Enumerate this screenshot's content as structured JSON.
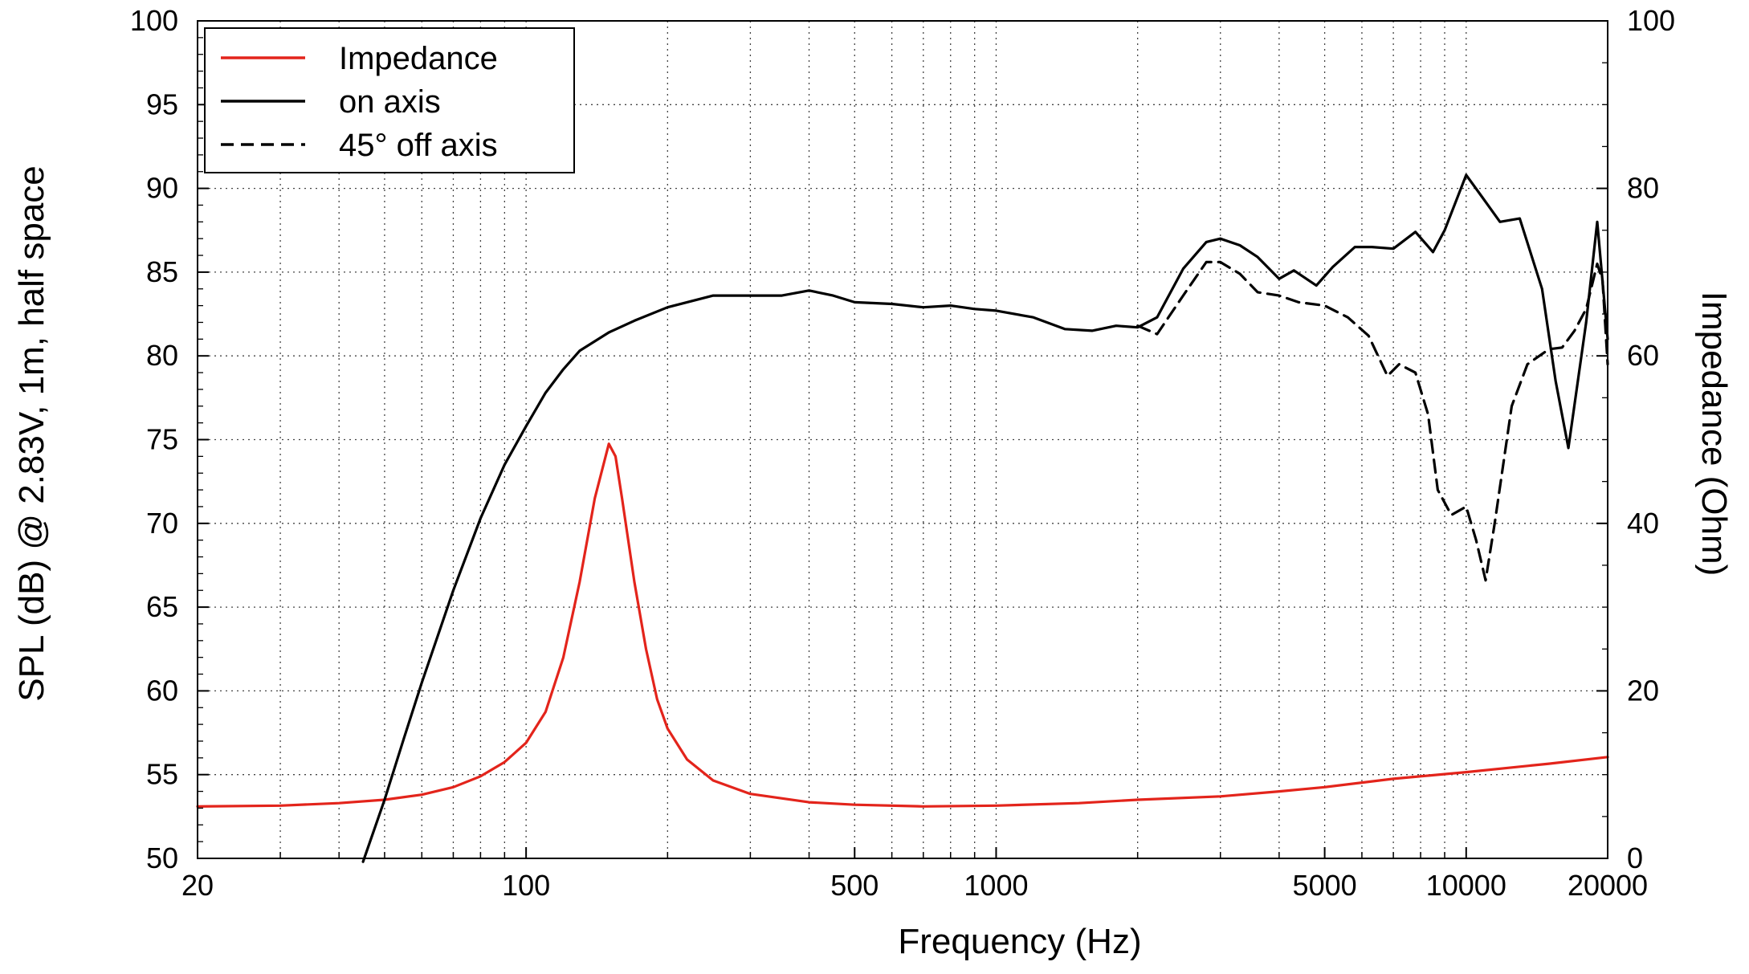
{
  "chart_data": {
    "type": "line",
    "xlabel": "Frequency (Hz)",
    "ylabel": "SPL (dB) @ 2.83V, 1m, half space",
    "y2label": "Impedance (Ohm)",
    "xscale": "log",
    "xlim": [
      20,
      20000
    ],
    "ylim": [
      50,
      100
    ],
    "y2lim": [
      0,
      100
    ],
    "grid": true,
    "legend_position": "top-left",
    "xticks": [
      20,
      100,
      500,
      1000,
      5000,
      10000,
      20000
    ],
    "xtick_labels": [
      "20",
      "100",
      "500",
      "1000",
      "5000",
      "10000",
      "20000"
    ],
    "yticks": [
      50,
      55,
      60,
      65,
      70,
      75,
      80,
      85,
      90,
      95,
      100
    ],
    "ytick_labels": [
      "50",
      "55",
      "60",
      "65",
      "70",
      "75",
      "80",
      "85",
      "90",
      "95",
      "100"
    ],
    "y2ticks": [
      0,
      20,
      40,
      60,
      80,
      100
    ],
    "y2tick_labels": [
      "0",
      "20",
      "40",
      "60",
      "80",
      "100"
    ],
    "series": [
      {
        "name": "Impedance",
        "axis": "right",
        "color": "#e3241b",
        "dash": "solid",
        "points": [
          [
            20,
            6.2
          ],
          [
            30,
            6.3
          ],
          [
            40,
            6.6
          ],
          [
            50,
            7
          ],
          [
            60,
            7.6
          ],
          [
            70,
            8.5
          ],
          [
            80,
            9.8
          ],
          [
            90,
            11.5
          ],
          [
            100,
            13.8
          ],
          [
            110,
            17.5
          ],
          [
            120,
            24
          ],
          [
            130,
            33
          ],
          [
            140,
            43
          ],
          [
            150,
            49.5
          ],
          [
            155,
            48
          ],
          [
            160,
            43
          ],
          [
            170,
            33
          ],
          [
            180,
            25
          ],
          [
            190,
            19
          ],
          [
            200,
            15.5
          ],
          [
            220,
            11.8
          ],
          [
            250,
            9.3
          ],
          [
            300,
            7.7
          ],
          [
            400,
            6.7
          ],
          [
            500,
            6.4
          ],
          [
            700,
            6.2
          ],
          [
            1000,
            6.3
          ],
          [
            1500,
            6.6
          ],
          [
            2000,
            7
          ],
          [
            3000,
            7.4
          ],
          [
            4000,
            8
          ],
          [
            5000,
            8.5
          ],
          [
            7000,
            9.5
          ],
          [
            10000,
            10.3
          ],
          [
            15000,
            11.3
          ],
          [
            20000,
            12.1
          ]
        ]
      },
      {
        "name": "on axis",
        "axis": "left",
        "color": "#000000",
        "dash": "solid",
        "points": [
          [
            45,
            49.8
          ],
          [
            50,
            53.5
          ],
          [
            55,
            57.2
          ],
          [
            60,
            60.5
          ],
          [
            70,
            66
          ],
          [
            80,
            70.3
          ],
          [
            90,
            73.5
          ],
          [
            100,
            75.8
          ],
          [
            110,
            77.8
          ],
          [
            120,
            79.2
          ],
          [
            130,
            80.3
          ],
          [
            150,
            81.4
          ],
          [
            170,
            82.1
          ],
          [
            200,
            82.9
          ],
          [
            250,
            83.6
          ],
          [
            300,
            83.6
          ],
          [
            350,
            83.6
          ],
          [
            400,
            83.9
          ],
          [
            450,
            83.6
          ],
          [
            500,
            83.2
          ],
          [
            600,
            83.1
          ],
          [
            700,
            82.9
          ],
          [
            800,
            83
          ],
          [
            900,
            82.8
          ],
          [
            1000,
            82.7
          ],
          [
            1200,
            82.3
          ],
          [
            1400,
            81.6
          ],
          [
            1600,
            81.5
          ],
          [
            1800,
            81.8
          ],
          [
            2000,
            81.7
          ],
          [
            2200,
            82.3
          ],
          [
            2500,
            85.2
          ],
          [
            2800,
            86.8
          ],
          [
            3000,
            87
          ],
          [
            3300,
            86.6
          ],
          [
            3600,
            85.9
          ],
          [
            4000,
            84.6
          ],
          [
            4300,
            85.1
          ],
          [
            4800,
            84.2
          ],
          [
            5200,
            85.3
          ],
          [
            5800,
            86.5
          ],
          [
            6300,
            86.5
          ],
          [
            7000,
            86.4
          ],
          [
            7800,
            87.4
          ],
          [
            8500,
            86.2
          ],
          [
            9000,
            87.5
          ],
          [
            10000,
            90.8
          ],
          [
            10800,
            89.5
          ],
          [
            11800,
            88
          ],
          [
            13000,
            88.2
          ],
          [
            14500,
            84
          ],
          [
            15500,
            78.5
          ],
          [
            16500,
            74.5
          ],
          [
            18000,
            82
          ],
          [
            19000,
            88
          ],
          [
            20000,
            81
          ]
        ]
      },
      {
        "name": "45° off axis",
        "axis": "left",
        "color": "#000000",
        "dash": "dashed",
        "points": [
          [
            2000,
            81.8
          ],
          [
            2200,
            81.3
          ],
          [
            2500,
            83.6
          ],
          [
            2800,
            85.6
          ],
          [
            3000,
            85.6
          ],
          [
            3300,
            84.9
          ],
          [
            3600,
            83.8
          ],
          [
            4000,
            83.6
          ],
          [
            4400,
            83.2
          ],
          [
            5000,
            83
          ],
          [
            5600,
            82.3
          ],
          [
            6200,
            81.2
          ],
          [
            6800,
            78.8
          ],
          [
            7200,
            79.5
          ],
          [
            7800,
            79
          ],
          [
            8300,
            76.5
          ],
          [
            8700,
            72
          ],
          [
            9300,
            70.5
          ],
          [
            10000,
            71
          ],
          [
            10500,
            69
          ],
          [
            11000,
            66.6
          ],
          [
            11500,
            70
          ],
          [
            12500,
            77
          ],
          [
            13500,
            79.5
          ],
          [
            15000,
            80.4
          ],
          [
            16000,
            80.5
          ],
          [
            17000,
            81.5
          ],
          [
            18000,
            82.8
          ],
          [
            19000,
            85.5
          ],
          [
            19500,
            84.5
          ],
          [
            20000,
            79.5
          ]
        ]
      }
    ]
  }
}
